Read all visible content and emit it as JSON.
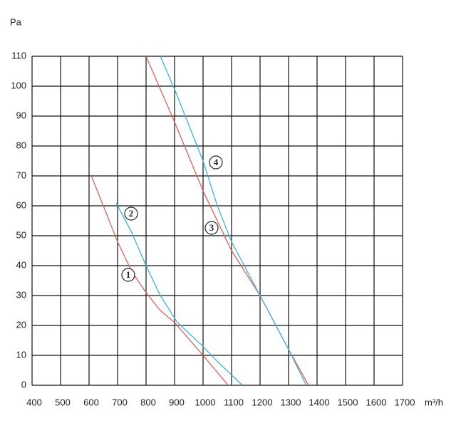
{
  "chart_data": {
    "type": "line",
    "y_label": "Pa",
    "x_label": "m³/h",
    "xlim": [
      400,
      1700
    ],
    "xticks": [
      400,
      500,
      600,
      700,
      800,
      900,
      1000,
      1100,
      1200,
      1300,
      1400,
      1500,
      1600,
      1700
    ],
    "ylim": [
      0,
      110
    ],
    "yticks": [
      0,
      10,
      20,
      30,
      40,
      50,
      60,
      70,
      80,
      90,
      100,
      110
    ],
    "grid": true,
    "series": [
      {
        "name": "1",
        "color": "#e0605a",
        "x": [
          608,
          650,
          700,
          750,
          800,
          850,
          900,
          1000,
          1088
        ],
        "values": [
          70,
          60,
          48,
          38,
          31,
          25,
          21,
          10,
          0
        ]
      },
      {
        "name": "2",
        "color": "#3fb2dc",
        "x": [
          695,
          750,
          800,
          850,
          910,
          1000,
          1050,
          1138
        ],
        "values": [
          61,
          51,
          40,
          30,
          21,
          13,
          8,
          0
        ]
      },
      {
        "name": "3",
        "color": "#e0605a",
        "x": [
          800,
          900,
          1000,
          1100,
          1200,
          1300,
          1370
        ],
        "values": [
          110,
          88,
          65,
          45,
          30,
          12,
          0
        ]
      },
      {
        "name": "4",
        "color": "#3fb2dc",
        "x": [
          850,
          900,
          1000,
          1050,
          1100,
          1200,
          1300,
          1362
        ],
        "values": [
          110,
          99,
          75,
          60,
          48,
          30,
          12,
          0
        ]
      }
    ]
  }
}
